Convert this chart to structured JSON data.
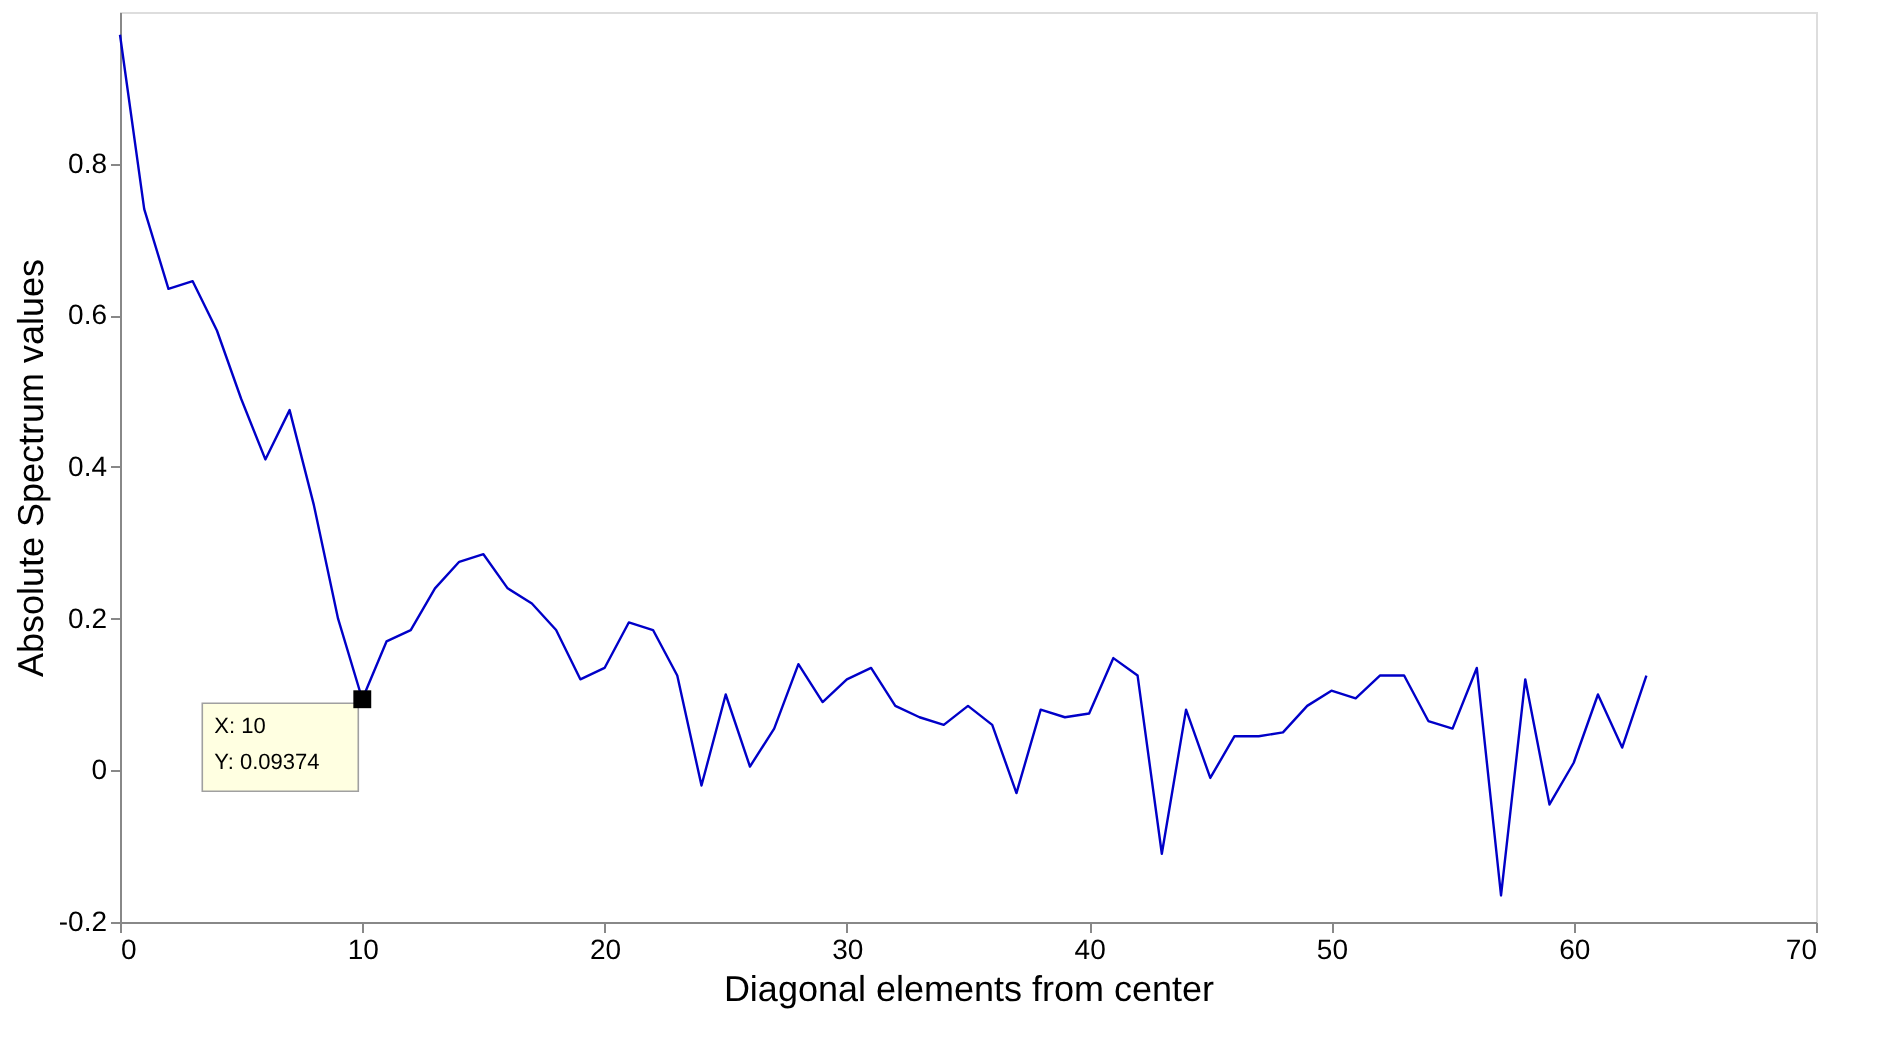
{
  "chart_data": {
    "type": "line",
    "xlabel": "Diagonal elements from center",
    "ylabel": "Absolute Spectrum values",
    "x": [
      0,
      1,
      2,
      3,
      4,
      5,
      6,
      7,
      8,
      9,
      10,
      11,
      12,
      13,
      14,
      15,
      16,
      17,
      18,
      19,
      20,
      21,
      22,
      23,
      24,
      25,
      26,
      27,
      28,
      29,
      30,
      31,
      32,
      33,
      34,
      35,
      36,
      37,
      38,
      39,
      40,
      41,
      42,
      43,
      44,
      45,
      46,
      47,
      48,
      49,
      50,
      51,
      52,
      53,
      54,
      55,
      56,
      57,
      58,
      59,
      60,
      61,
      62,
      63
    ],
    "series": [
      {
        "color": "#0000c8",
        "values": [
          0.97,
          0.74,
          0.635,
          0.645,
          0.58,
          0.49,
          0.41,
          0.475,
          0.35,
          0.2,
          0.09374,
          0.17,
          0.185,
          0.24,
          0.275,
          0.285,
          0.24,
          0.22,
          0.185,
          0.12,
          0.135,
          0.195,
          0.185,
          0.125,
          -0.02,
          0.1,
          0.005,
          0.055,
          0.14,
          0.09,
          0.12,
          0.135,
          0.085,
          0.07,
          0.06,
          0.085,
          0.06,
          -0.03,
          0.08,
          0.07,
          0.075,
          0.148,
          0.125,
          -0.11,
          0.08,
          -0.01,
          0.045,
          0.045,
          0.05,
          0.085,
          0.105,
          0.095,
          0.125,
          0.125,
          0.065,
          0.055,
          0.135,
          -0.165,
          0.12,
          -0.045,
          0.01,
          0.1,
          0.03,
          0.125
        ]
      }
    ],
    "xlim": [
      0,
      70
    ],
    "xticks": [
      0,
      10,
      20,
      30,
      40,
      50,
      60,
      70
    ],
    "ylim": [
      -0.2,
      1.0
    ],
    "yticks": [
      -0.2,
      0,
      0.2,
      0.4,
      0.6,
      0.8
    ],
    "grid": false,
    "legend": false,
    "marker": "none",
    "line_style": "solid",
    "annotations": [
      {
        "text": "X: 10\nY: 0.09374",
        "x": 10,
        "y": 0.09374
      }
    ]
  }
}
